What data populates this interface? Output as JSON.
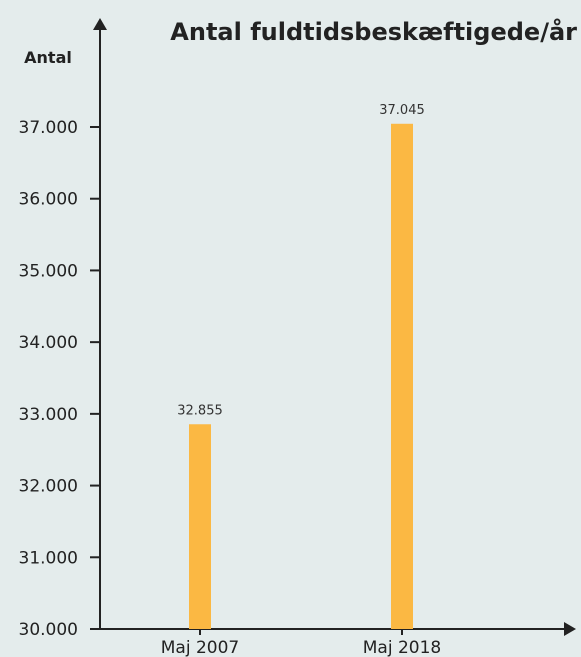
{
  "chart_data": {
    "type": "bar",
    "title": "Antal fuldtidsbeskæftigede/år",
    "xlabel": "",
    "ylabel": "Antal",
    "categories": [
      "Maj 2007",
      "Maj 2018"
    ],
    "values": [
      32855,
      37045
    ],
    "data_labels": [
      "32.855",
      "37.045"
    ],
    "ylim": [
      30000,
      37500
    ],
    "y_ticks": [
      30000,
      31000,
      32000,
      33000,
      34000,
      35000,
      36000,
      37000
    ],
    "y_tick_labels": [
      "30.000",
      "31.000",
      "32.000",
      "33.000",
      "34.000",
      "35.000",
      "36.000",
      "37.000"
    ],
    "grid": false,
    "legend": "none",
    "colors": {
      "bar": "#fbb843",
      "axis": "#222222",
      "background": "#e4ecec"
    }
  }
}
